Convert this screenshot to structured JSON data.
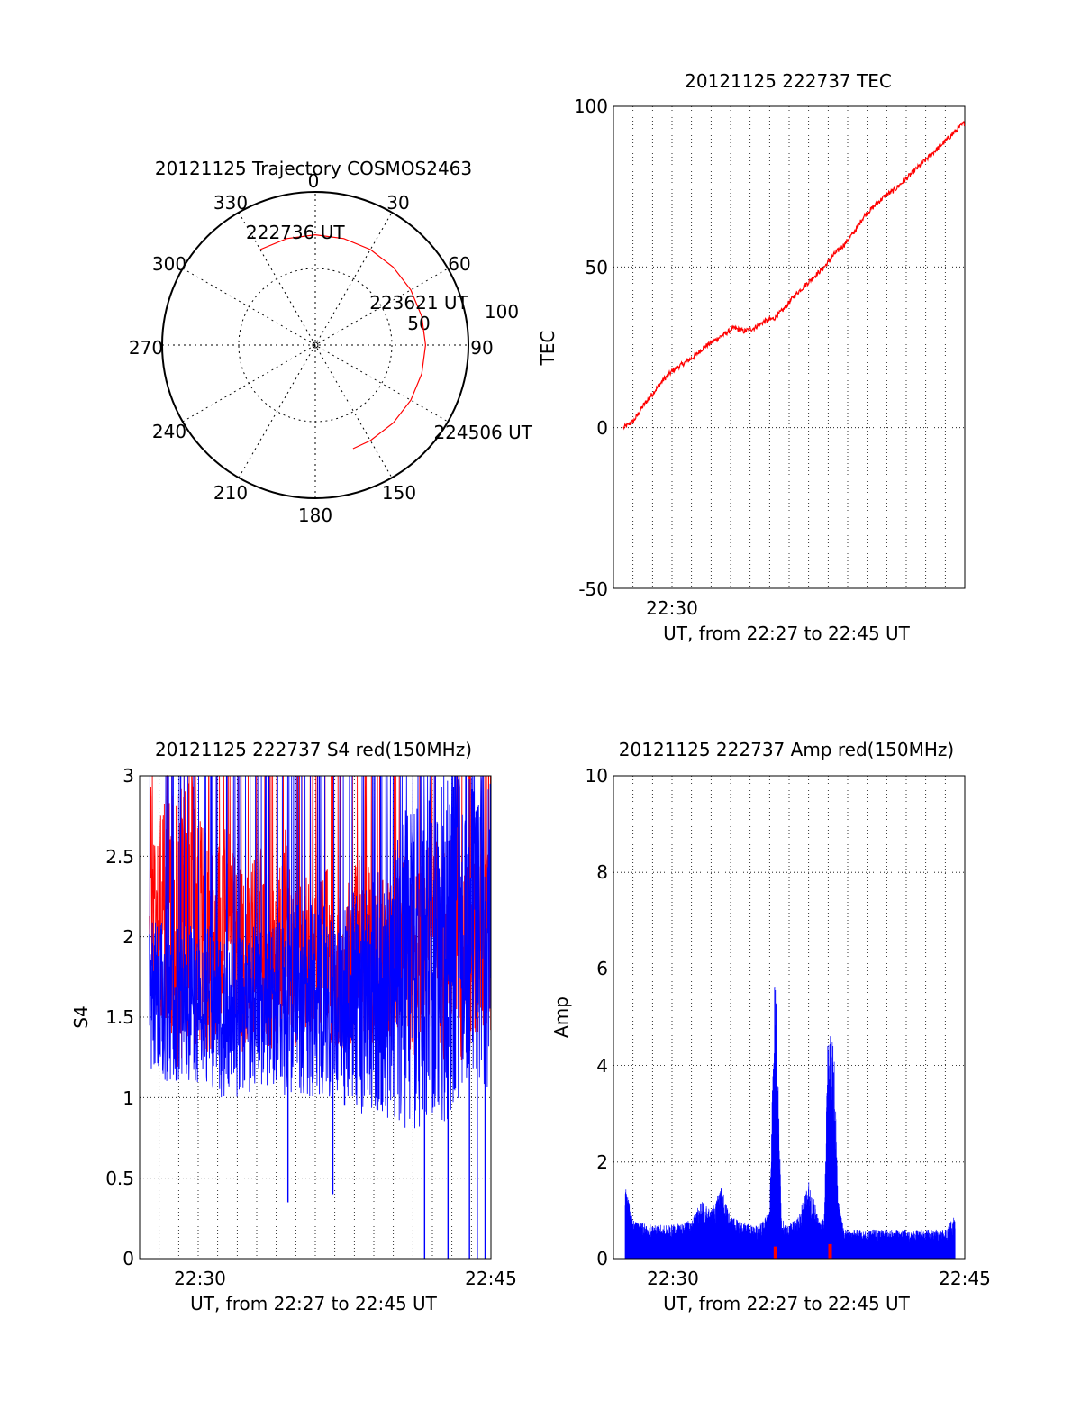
{
  "colors": {
    "red": "#ff0000",
    "blue": "#0000ff",
    "axis": "#000000",
    "grid": "#000000"
  },
  "chart_data": [
    {
      "id": "trajectory",
      "type": "polar",
      "title": "20121125 Trajectory COSMOS2463",
      "azimuth_labels": [
        "0",
        "30",
        "60",
        "90",
        "150",
        "180",
        "210",
        "240",
        "270",
        "300",
        "330"
      ],
      "ring_labels": [
        "50",
        "100"
      ],
      "grid": "dotted",
      "track": {
        "azimuth": [
          330,
          345,
          0,
          15,
          30,
          45,
          60,
          75,
          90,
          105,
          120,
          135,
          150,
          160
        ],
        "radius": [
          72,
          72,
          72,
          72,
          72,
          72,
          72,
          72,
          72,
          72,
          72,
          72,
          72,
          72
        ]
      },
      "annotations": [
        {
          "text": "222736 UT",
          "anchor": "start"
        },
        {
          "text": "223621 UT",
          "anchor": "middle"
        },
        {
          "text": "224506 UT",
          "anchor": "end"
        }
      ]
    },
    {
      "id": "tec",
      "type": "line",
      "title": "20121125 222737 TEC",
      "ylabel": "TEC",
      "xlabel": "UT, from 22:27 to 22:45 UT",
      "x_tick_labels": [
        "22:30"
      ],
      "y_tick_labels": [
        "100",
        "50",
        "0",
        "-50"
      ],
      "ylim": [
        -50,
        100
      ],
      "xlim_minutes": [
        27.5,
        45
      ],
      "grid": "dotted",
      "series": [
        {
          "color": "red",
          "x_minutes": [
            28.0,
            28.5,
            29.0,
            29.5,
            30.0,
            30.5,
            31.0,
            31.5,
            32.0,
            32.5,
            33.0,
            33.5,
            34.0,
            34.5,
            35.0,
            35.5,
            36.0,
            36.5,
            37.0,
            37.5,
            38.0,
            38.5,
            39.0,
            39.5,
            40.0,
            40.5,
            41.0,
            41.5,
            42.0,
            42.5,
            43.0,
            43.5,
            44.0,
            44.5,
            45.0
          ],
          "values": [
            0,
            2,
            7,
            11,
            15,
            18,
            20,
            22,
            25,
            27,
            29,
            31,
            30,
            31,
            33,
            34,
            37,
            41,
            44,
            47,
            50,
            54,
            57,
            61,
            66,
            69,
            72,
            74,
            77,
            80,
            83,
            86,
            89,
            92,
            95
          ]
        }
      ]
    },
    {
      "id": "s4",
      "type": "line",
      "title": "20121125 222737 S4 red(150MHz)",
      "ylabel": "S4",
      "xlabel": "UT, from 22:27 to 22:45 UT",
      "x_tick_labels": [
        "22:30",
        "22:45"
      ],
      "y_tick_labels": [
        "3",
        "2.5",
        "2",
        "1.5",
        "1",
        "0.5",
        "0"
      ],
      "ylim": [
        0,
        3
      ],
      "xlim_minutes": [
        27,
        45
      ],
      "grid": "dotted",
      "series": [
        {
          "color": "red",
          "x_minutes": [
            27.5,
            28.0,
            28.5,
            29.0,
            29.5,
            30.0,
            30.5,
            31.0,
            31.5,
            32.0,
            32.5,
            33.0,
            33.5,
            34.0,
            34.5,
            35.0,
            35.5,
            36.0,
            36.5,
            37.0,
            37.5,
            38.0,
            38.5,
            39.0,
            39.5,
            40.0,
            40.5,
            41.0,
            41.5,
            42.0,
            42.5,
            43.0,
            43.5,
            44.0,
            44.5
          ],
          "values": [
            2.4,
            2.1,
            2.3,
            2.0,
            2.2,
            2.1,
            1.9,
            2.0,
            2.2,
            1.9,
            1.8,
            2.0,
            1.9,
            1.8,
            2.1,
            1.8,
            1.9,
            1.8,
            2.0,
            1.7,
            1.8,
            1.9,
            2.0,
            1.8,
            1.9,
            1.8,
            2.0,
            1.8,
            1.9,
            2.0,
            1.9,
            2.1,
            1.8,
            1.9,
            2.0
          ],
          "spread": [
            0.6,
            0.7,
            0.8,
            0.9,
            0.8,
            0.8,
            0.7,
            0.6,
            0.6,
            0.6,
            0.6,
            0.6,
            0.6,
            0.5,
            0.6,
            0.5,
            0.5,
            0.5,
            0.5,
            0.5,
            0.5,
            0.6,
            0.6,
            0.5,
            0.5,
            0.5,
            0.6,
            0.6,
            0.6,
            0.6,
            0.7,
            0.7,
            0.6,
            0.6,
            0.6
          ]
        },
        {
          "color": "blue",
          "x_minutes": [
            27.5,
            28.0,
            28.5,
            29.0,
            29.5,
            30.0,
            30.5,
            31.0,
            31.5,
            32.0,
            32.5,
            33.0,
            33.5,
            34.0,
            34.5,
            35.0,
            35.5,
            36.0,
            36.5,
            37.0,
            37.5,
            38.0,
            38.5,
            39.0,
            39.5,
            40.0,
            40.5,
            41.0,
            41.5,
            42.0,
            42.5,
            43.0,
            43.5,
            44.0,
            44.5
          ],
          "values": [
            1.7,
            1.6,
            1.6,
            1.6,
            1.6,
            1.5,
            1.6,
            1.5,
            1.5,
            1.5,
            1.5,
            1.6,
            1.5,
            1.6,
            1.6,
            1.6,
            1.6,
            1.6,
            1.6,
            1.6,
            1.6,
            1.6,
            1.6,
            1.7,
            1.7,
            1.7,
            1.8,
            1.8,
            1.8,
            1.9,
            1.9,
            2.0,
            2.0,
            2.0,
            2.0
          ],
          "spread": [
            0.5,
            0.5,
            0.5,
            0.5,
            0.5,
            0.5,
            0.5,
            0.5,
            0.5,
            0.5,
            0.5,
            0.5,
            0.5,
            0.5,
            0.6,
            0.6,
            0.6,
            0.6,
            0.6,
            0.6,
            0.6,
            0.7,
            0.7,
            0.8,
            0.8,
            0.9,
            1.0,
            1.0,
            1.0,
            1.0,
            1.1,
            1.1,
            1.0,
            1.0,
            1.0
          ]
        }
      ],
      "dropouts_blue": [
        {
          "x_minutes": 34.6,
          "value": 0.35
        },
        {
          "x_minutes": 36.9,
          "value": 0.4
        },
        {
          "x_minutes": 37.5,
          "value": 0.95
        },
        {
          "x_minutes": 41.6,
          "value": 0.0
        },
        {
          "x_minutes": 42.8,
          "value": 0.0
        },
        {
          "x_minutes": 43.9,
          "value": 0.0
        },
        {
          "x_minutes": 44.3,
          "value": 0.0
        },
        {
          "x_minutes": 44.7,
          "value": 0.0
        }
      ]
    },
    {
      "id": "amp",
      "type": "line",
      "title": "20121125 222737 Amp red(150MHz)",
      "ylabel": "Amp",
      "xlabel": "UT, from 22:27 to 22:45 UT",
      "x_tick_labels": [
        "22:30",
        "22:45"
      ],
      "y_tick_labels": [
        "10",
        "8",
        "6",
        "4",
        "2",
        "0"
      ],
      "ylim": [
        0,
        10
      ],
      "xlim_minutes": [
        27,
        45
      ],
      "grid": "dotted",
      "series": [
        {
          "color": "blue",
          "x_minutes": [
            27.6,
            28.0,
            29.0,
            30.0,
            31.0,
            31.5,
            32.0,
            32.5,
            33.0,
            33.5,
            34.0,
            34.5,
            35.0,
            35.3,
            35.6,
            35.8,
            36.0,
            36.5,
            37.0,
            37.5,
            37.8,
            38.0,
            38.3,
            38.5,
            38.8,
            39.0,
            39.5,
            40.0,
            41.0,
            42.0,
            43.0,
            44.0,
            44.5
          ],
          "values": [
            1.55,
            0.8,
            0.7,
            0.7,
            0.8,
            1.2,
            1.0,
            1.5,
            0.9,
            0.8,
            0.7,
            0.7,
            1.0,
            6.5,
            0.9,
            0.7,
            0.7,
            0.9,
            1.6,
            0.9,
            0.8,
            5.1,
            4.5,
            1.3,
            0.6,
            0.6,
            0.6,
            0.6,
            0.6,
            0.6,
            0.6,
            0.6,
            0.9
          ]
        }
      ],
      "red_spikes": [
        {
          "x_minutes": 35.3,
          "value": 0.25
        },
        {
          "x_minutes": 38.1,
          "value": 0.3
        }
      ]
    }
  ]
}
